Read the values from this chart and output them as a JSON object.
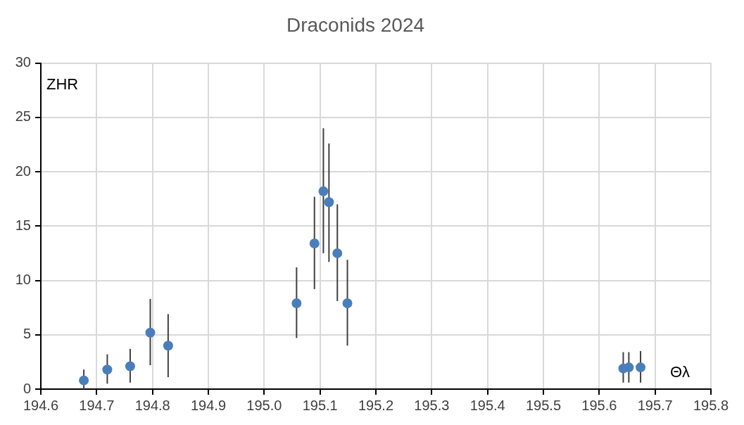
{
  "chart_data": {
    "type": "scatter",
    "title": "Draconids 2024",
    "xlabel": "Θλ",
    "ylabel": "ZHR",
    "x": [
      194.677,
      194.719,
      194.76,
      194.796,
      194.828,
      195.058,
      195.09,
      195.106,
      195.116,
      195.131,
      195.149,
      195.643,
      195.653,
      195.674
    ],
    "series": [
      {
        "color": "#4a7ebb",
        "values": [
          0.8,
          1.8,
          2.1,
          5.2,
          4.0,
          7.9,
          13.4,
          18.2,
          17.2,
          12.5,
          7.9,
          1.9,
          2.0,
          2.0
        ],
        "errors": [
          [
            0,
            1.8
          ],
          [
            0.5,
            3.2
          ],
          [
            0.6,
            3.7
          ],
          [
            2.2,
            8.3
          ],
          [
            1.1,
            6.9
          ],
          [
            4.7,
            11.2
          ],
          [
            9.2,
            17.7
          ],
          [
            12.5,
            24.0
          ],
          [
            11.7,
            22.6
          ],
          [
            8.1,
            17.0
          ],
          [
            4.0,
            11.9
          ],
          [
            0.6,
            3.4
          ],
          [
            0.6,
            3.4
          ],
          [
            0.6,
            3.5
          ]
        ]
      }
    ],
    "xlim": [
      194.6,
      195.8
    ],
    "xticks": [
      194.6,
      194.7,
      194.8,
      194.9,
      {
        "value": 195,
        "label": "195.0"
      },
      195.1,
      195.2,
      195.3,
      195.4,
      195.5,
      195.6,
      195.7,
      195.8
    ],
    "ylim": [
      0,
      30
    ],
    "yticks": [
      0,
      5,
      10,
      15,
      20,
      25,
      30
    ],
    "grid": true,
    "legend": false,
    "marker": "circle"
  }
}
